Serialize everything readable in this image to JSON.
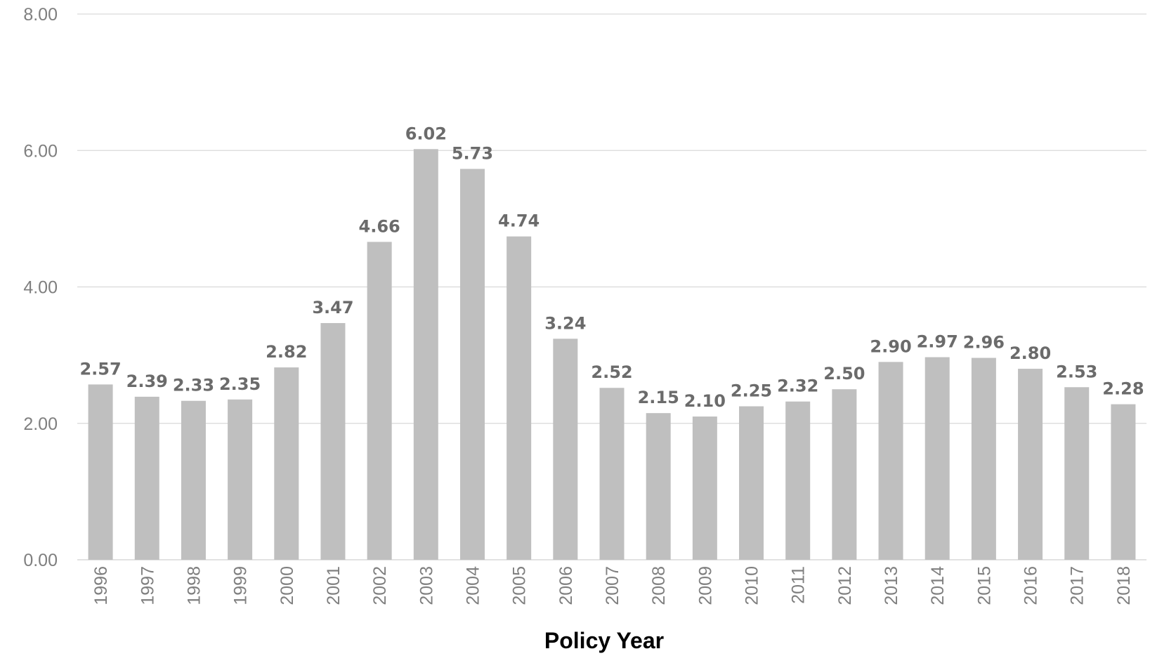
{
  "chart_data": {
    "type": "bar",
    "xlabel": "Policy Year",
    "ylabel": "",
    "ylim": [
      0,
      8
    ],
    "yticks": [
      "0.00",
      "2.00",
      "4.00",
      "6.00",
      "8.00"
    ],
    "grid": true,
    "colors": {
      "bar": "#bfbfbf",
      "label": "#6b6b6b",
      "grid": "#d9d9d9"
    },
    "categories": [
      "1996",
      "1997",
      "1998",
      "1999",
      "2000",
      "2001",
      "2002",
      "2003",
      "2004",
      "2005",
      "2006",
      "2007",
      "2008",
      "2009",
      "2010",
      "2011",
      "2012",
      "2013",
      "2014",
      "2015",
      "2016",
      "2017",
      "2018"
    ],
    "values": [
      2.57,
      2.39,
      2.33,
      2.35,
      2.82,
      3.47,
      4.66,
      6.02,
      5.73,
      4.74,
      3.24,
      2.52,
      2.15,
      2.1,
      2.25,
      2.32,
      2.5,
      2.9,
      2.97,
      2.96,
      2.8,
      2.53,
      2.28
    ],
    "data_labels": [
      "2.57",
      "2.39",
      "2.33",
      "2.35",
      "2.82",
      "3.47",
      "4.66",
      "6.02",
      "5.73",
      "4.74",
      "3.24",
      "2.52",
      "2.15",
      "2.10",
      "2.25",
      "2.32",
      "2.50",
      "2.90",
      "2.97",
      "2.96",
      "2.80",
      "2.53",
      "2.28"
    ]
  }
}
